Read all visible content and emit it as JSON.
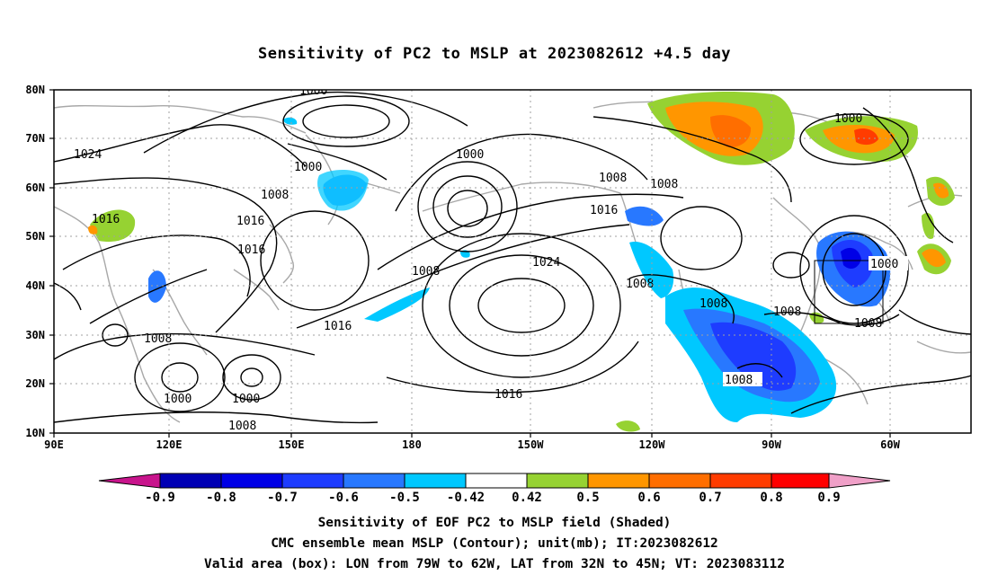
{
  "title": "Sensitivity of PC2 to MSLP at 2023082612 +4.5 day",
  "map": {
    "lat_labels": [
      "80N",
      "70N",
      "60N",
      "50N",
      "40N",
      "30N",
      "20N",
      "10N"
    ],
    "lon_labels": [
      "90E",
      "120E",
      "150E",
      "180",
      "150W",
      "120W",
      "90W",
      "60W"
    ],
    "contour_labels": [
      {
        "text": "1000"
      },
      {
        "text": "1024"
      },
      {
        "text": "1000"
      },
      {
        "text": "1008"
      },
      {
        "text": "1016"
      },
      {
        "text": "1016"
      },
      {
        "text": "1016"
      },
      {
        "text": "1000"
      },
      {
        "text": "1008"
      },
      {
        "text": "1024"
      },
      {
        "text": "1016"
      },
      {
        "text": "1008"
      },
      {
        "text": "1008"
      },
      {
        "text": "1016"
      },
      {
        "text": "1008"
      },
      {
        "text": "1008"
      },
      {
        "text": "1000"
      },
      {
        "text": "1008"
      },
      {
        "text": "1000"
      },
      {
        "text": "1000"
      },
      {
        "text": "1008"
      },
      {
        "text": "1016"
      },
      {
        "text": "1008"
      },
      {
        "text": "1008"
      }
    ],
    "valid_box": {
      "lon_from": "79W",
      "lon_to": "62W",
      "lat_from": "32N",
      "lat_to": "45N"
    }
  },
  "colorbar": {
    "labels": [
      "-0.9",
      "-0.8",
      "-0.7",
      "-0.6",
      "-0.5",
      "-0.42",
      "0.42",
      "0.5",
      "0.6",
      "0.7",
      "0.8",
      "0.9"
    ],
    "colors": {
      "lt_-0.9": "#c8148c",
      "b1": "#0000b4",
      "b2": "#0000e6",
      "b3": "#1e3cff",
      "b4": "#2878ff",
      "b5": "#3ca0ff",
      "b6": "#00c8ff",
      "b7": "#ffffff",
      "b8": "#96d232",
      "b9": "#ff9600",
      "b10": "#ff6e00",
      "b11": "#ff3c00",
      "b12": "#ff0000",
      "gt_0.9": "#f0a0c8"
    }
  },
  "captions": [
    "Sensitivity of EOF PC2 to MSLP field (Shaded)",
    "CMC ensemble mean MSLP (Contour); unit(mb); IT:2023082612",
    "Valid area (box): LON from 79W to 62W, LAT from 32N to 45N; VT: 2023083112"
  ]
}
